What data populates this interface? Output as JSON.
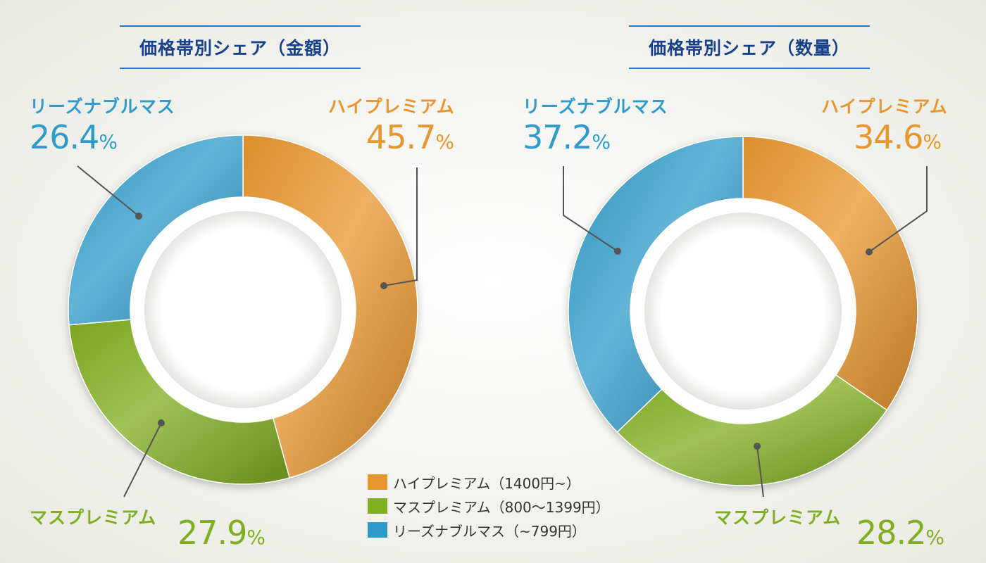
{
  "chart_data": [
    {
      "type": "pie",
      "title": "価格帯別シェア（金額）",
      "categories": [
        "ハイプレミアム",
        "マスプレミアム",
        "リーズナブルマス"
      ],
      "values": [
        45.7,
        27.9,
        26.4
      ],
      "value_labels": [
        "45.7",
        "27.9",
        "26.4"
      ],
      "unit": "%",
      "colors": [
        "#e8962e",
        "#7fae1f",
        "#2f9bc8"
      ],
      "legend_position": "bottom-center"
    },
    {
      "type": "pie",
      "title": "価格帯別シェア（数量）",
      "categories": [
        "ハイプレミアム",
        "マスプレミアム",
        "リーズナブルマス"
      ],
      "values": [
        34.6,
        28.2,
        37.2
      ],
      "value_labels": [
        "34.6",
        "28.2",
        "37.2"
      ],
      "unit": "%",
      "colors": [
        "#e8962e",
        "#7fae1f",
        "#2f9bc8"
      ]
    }
  ],
  "legend": [
    {
      "label": "ハイプレミアム（1400円~）",
      "color": "#e8962e"
    },
    {
      "label": "マスプレミアム（800～1399円）",
      "color": "#7fae1f"
    },
    {
      "label": "リーズナブルマス（~799円）",
      "color": "#2f9bc8"
    }
  ]
}
